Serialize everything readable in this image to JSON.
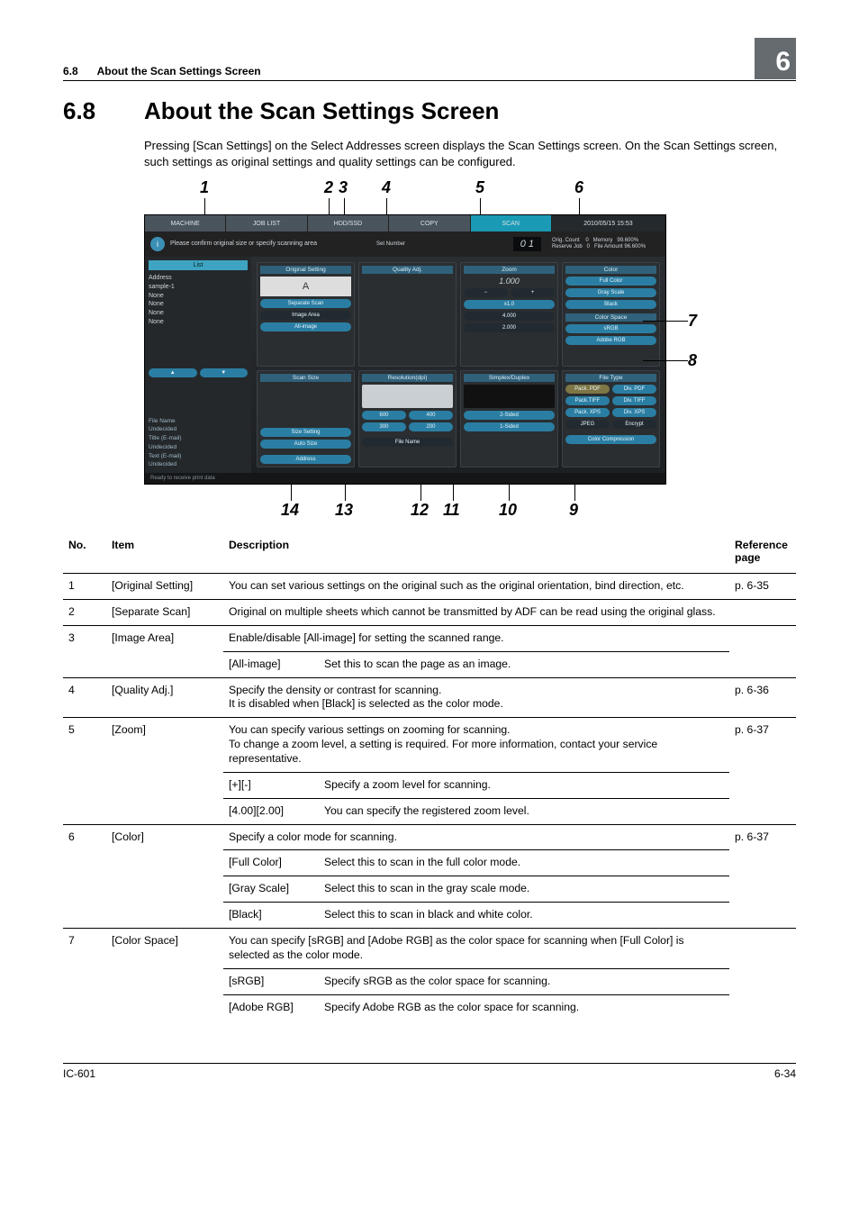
{
  "header": {
    "section_num": "6.8",
    "section_title_small": "About the Scan Settings Screen",
    "chapter_box": "6"
  },
  "title": {
    "num": "6.8",
    "text": "About the Scan Settings Screen"
  },
  "intro": "Pressing [Scan Settings] on the Select Addresses screen displays the Scan Settings screen. On the Scan Settings screen, such settings as original settings and quality settings can be configured.",
  "callouts": {
    "top": [
      "1",
      "2",
      "3",
      "4",
      "5",
      "6"
    ],
    "right": [
      "7",
      "8"
    ],
    "bottom": [
      "14",
      "13",
      "12",
      "11",
      "10",
      "9"
    ]
  },
  "screenshot": {
    "tabs": {
      "machine": "MACHINE",
      "joblist": "JOB LIST",
      "hdd": "HDD/SSD",
      "copy": "COPY",
      "scan": "SCAN",
      "date": "2010/05/15 15:53"
    },
    "info_msg": "Please confirm original size or specify scanning area",
    "set_number_label": "Set Number",
    "set_number_value": "0 1",
    "status_right": "Orig. Count    0   Memory   99.600%\nReserve Job   0   File Amount 96.600%",
    "left": {
      "list_btn": "List",
      "address_label": "Address",
      "addresses": [
        "sample-1",
        "None",
        "None",
        "None",
        "None"
      ],
      "file_name_label": "File Name",
      "file_name": "Undecided",
      "title_label": "Title (E-mail)",
      "title": "Undecided",
      "text_label": "Text (E-mail)",
      "text": "Undecided"
    },
    "panels": {
      "original": {
        "h": "Original Setting",
        "btns": [
          "Separate   Scan",
          "Image Area",
          "All-image"
        ]
      },
      "quality": {
        "h": "Quality Adj."
      },
      "zoom": {
        "h": "Zoom",
        "val": "1.000",
        "x1": "x1.0",
        "p1": "4.000",
        "p2": "2.000"
      },
      "color": {
        "h": "Color",
        "btns": [
          "Full Color",
          "Gray Scale",
          "Black"
        ],
        "cs_h": "Color Space",
        "cs": [
          "sRGB",
          "Adobe RGB"
        ]
      },
      "scansize": {
        "h": "Scan Size",
        "btns": [
          "Size Setting",
          "Auto Size"
        ],
        "addr": "Address"
      },
      "resolution": {
        "h": "Resolution(dpi)",
        "btns": [
          "600",
          "400",
          "300",
          "200"
        ],
        "fn": "File Name"
      },
      "duplex": {
        "h": "Simplex/Duplex",
        "btns": [
          "2-Sided",
          "1-Sided"
        ]
      },
      "filetype": {
        "h": "File Type",
        "rows": [
          [
            "Pack. PDF",
            "Div. PDF"
          ],
          [
            "Pack.TIFF",
            "Div. TIFF"
          ],
          [
            "Pack. XPS",
            "Div. XPS"
          ],
          [
            "JPEG",
            "Encrypt"
          ]
        ],
        "cc": "Color Compression"
      }
    },
    "foot": "Ready to receive print data"
  },
  "table": {
    "head": {
      "no": "No.",
      "item": "Item",
      "desc": "Description",
      "ref": "Reference page"
    },
    "rows": [
      {
        "no": "1",
        "item": "[Original Setting]",
        "desc": "You can set various settings on the original such as the original orientation, bind direction, etc.",
        "ref": "p. 6-35"
      },
      {
        "no": "2",
        "item": "[Separate Scan]",
        "desc": "Original on multiple sheets which cannot be transmitted by ADF can be read using the original glass.",
        "ref": ""
      },
      {
        "no": "3",
        "item": "[Image Area]",
        "desc": "Enable/disable [All-image] for setting the scanned range.",
        "ref": "",
        "subs": [
          {
            "sub": "[All-image]",
            "subdesc": "Set this to scan the page as an image."
          }
        ]
      },
      {
        "no": "4",
        "item": "[Quality Adj.]",
        "desc": "Specify the density or contrast for scanning.\nIt is disabled when [Black] is selected as the color mode.",
        "ref": "p. 6-36"
      },
      {
        "no": "5",
        "item": "[Zoom]",
        "desc": "You can specify various settings on zooming for scanning.\nTo change a zoom level, a setting is required. For more information, contact your service representative.",
        "ref": "p. 6-37",
        "subs": [
          {
            "sub": "[+][-]",
            "subdesc": "Specify a zoom level for scanning."
          },
          {
            "sub": "[4.00][2.00]",
            "subdesc": "You can specify the registered zoom level."
          }
        ]
      },
      {
        "no": "6",
        "item": "[Color]",
        "desc": "Specify a color mode for scanning.",
        "ref": "p. 6-37",
        "subs": [
          {
            "sub": "[Full Color]",
            "subdesc": "Select this to scan in the full color mode."
          },
          {
            "sub": "[Gray Scale]",
            "subdesc": "Select this to scan in the gray scale mode."
          },
          {
            "sub": "[Black]",
            "subdesc": "Select this to scan in black and white color."
          }
        ]
      },
      {
        "no": "7",
        "item": "[Color Space]",
        "desc": "You can specify [sRGB] and [Adobe RGB] as the color space for scanning when [Full Color] is selected as the color mode.",
        "ref": "",
        "subs": [
          {
            "sub": "[sRGB]",
            "subdesc": "Specify sRGB as the color space for scanning."
          },
          {
            "sub": "[Adobe RGB]",
            "subdesc": "Specify Adobe RGB as the color space for scanning."
          }
        ]
      }
    ]
  },
  "footer": {
    "left": "IC-601",
    "right": "6-34"
  }
}
